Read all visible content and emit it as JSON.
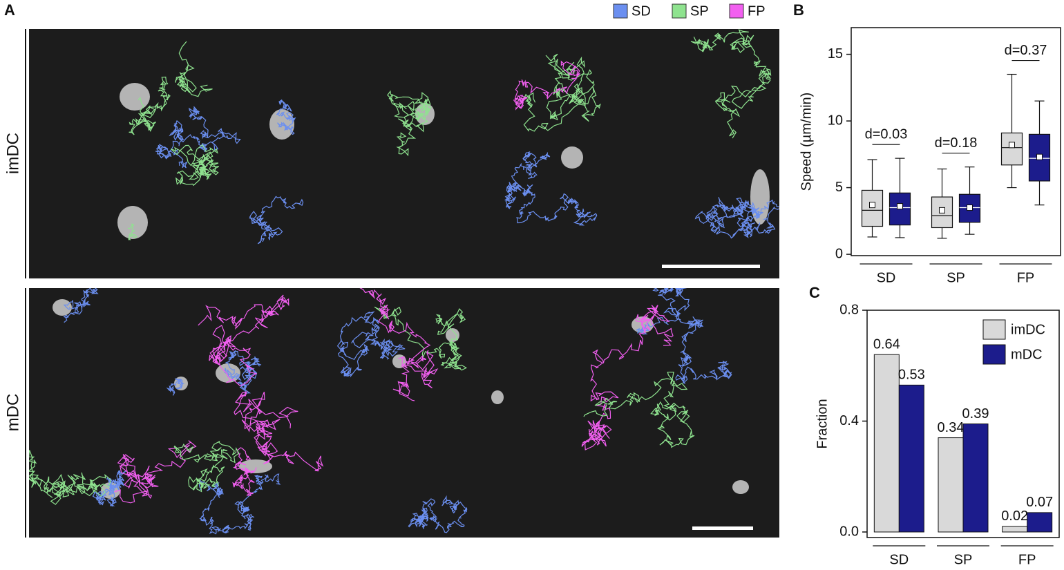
{
  "panel_a": {
    "label": "A",
    "legend": [
      {
        "name": "SD",
        "color": "#6b8ff0"
      },
      {
        "name": "SP",
        "color": "#8fe38f"
      },
      {
        "name": "FP",
        "color": "#f25ff0"
      }
    ],
    "image_labels": [
      "imDC",
      "mDC"
    ]
  },
  "chart_data": [
    {
      "type": "box",
      "panel_label": "B",
      "y_label": "Speed (µm/min)",
      "categories": [
        "SD",
        "SP",
        "FP"
      ],
      "ylim": [
        -0.1,
        17
      ],
      "yticks": [
        0,
        5,
        10,
        15
      ],
      "annotations": [
        "d=0.03",
        "d=0.18",
        "d=0.37"
      ],
      "series": [
        {
          "color": "#d9d9d9",
          "values": [
            {
              "whisker_low": 1.3,
              "q1": 2.1,
              "median": 3.3,
              "q3": 4.8,
              "whisker_high": 7.1,
              "mean": 3.7
            },
            {
              "whisker_low": 1.2,
              "q1": 2.0,
              "median": 2.9,
              "q3": 4.3,
              "whisker_high": 6.4,
              "mean": 3.3
            },
            {
              "whisker_low": 5.0,
              "q1": 6.7,
              "median": 8.0,
              "q3": 9.1,
              "whisker_high": 13.5,
              "mean": 8.2
            }
          ]
        },
        {
          "color": "#1c1c8c",
          "values": [
            {
              "whisker_low": 1.25,
              "q1": 2.2,
              "median": 3.5,
              "q3": 4.6,
              "whisker_high": 7.2,
              "mean": 3.6
            },
            {
              "whisker_low": 1.5,
              "q1": 2.4,
              "median": 3.5,
              "q3": 4.5,
              "whisker_high": 6.55,
              "mean": 3.5
            },
            {
              "whisker_low": 3.7,
              "q1": 5.5,
              "median": 7.2,
              "q3": 9.0,
              "whisker_high": 11.5,
              "mean": 7.3
            }
          ]
        }
      ]
    },
    {
      "type": "bar",
      "panel_label": "C",
      "y_label": "Fraction",
      "categories": [
        "SD",
        "SP",
        "FP"
      ],
      "ylim": [
        -0.02,
        0.8
      ],
      "yticks": [
        {
          "value": 0,
          "label": "0.0"
        },
        0.4,
        0.8
      ],
      "legend": "top-right",
      "series": [
        {
          "name": "imDC",
          "color": "#d9d9d9",
          "values": [
            0.64,
            0.34,
            0.02
          ]
        },
        {
          "name": "mDC",
          "color": "#1c1c8c",
          "values": [
            0.53,
            0.39,
            0.07
          ]
        }
      ]
    }
  ]
}
